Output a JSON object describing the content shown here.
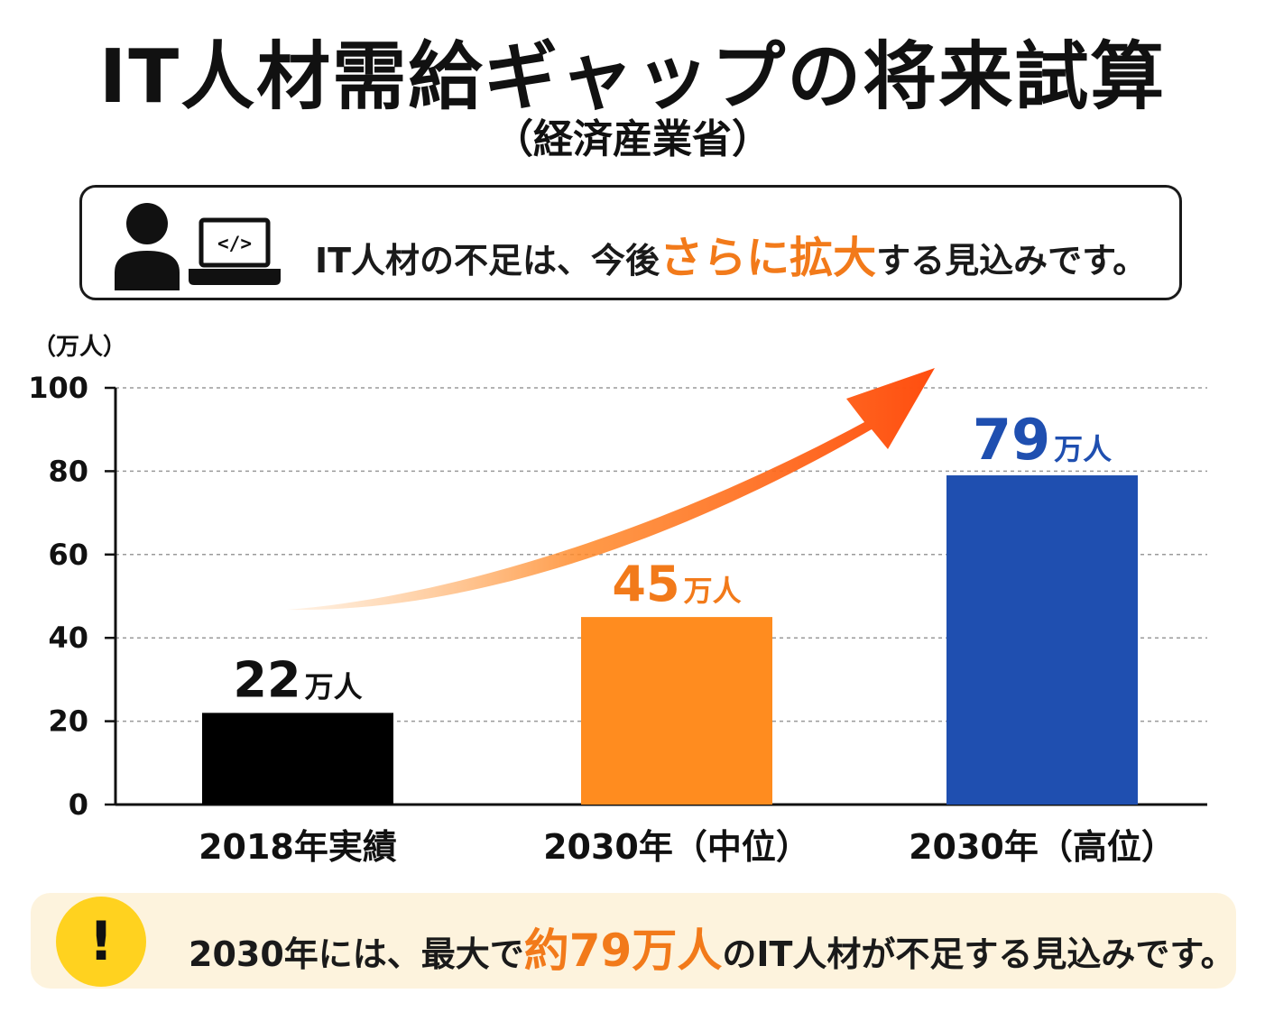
{
  "title": "IT人材需給ギャップの将来試算",
  "subtitle": "（経済産業省）",
  "message": {
    "prefix": "IT人材の不足は、今後",
    "highlight": "さらに拡大",
    "suffix": "する見込みです。",
    "icon": "person-laptop-code-icon",
    "code_glyph": "</>"
  },
  "chart_data": {
    "type": "bar",
    "unit_label": "（万人）",
    "categories": [
      "2018年実績",
      "2030年（中位）",
      "2030年（高位）"
    ],
    "values": [
      22,
      45,
      79
    ],
    "value_labels": [
      "22",
      "45",
      "79"
    ],
    "value_unit": "万人",
    "bar_colors": [
      "#000000",
      "#ff8c1f",
      "#1f4fb0"
    ],
    "label_colors": [
      "#111111",
      "#f27a1a",
      "#1f4fb0"
    ],
    "ylim": [
      0,
      100
    ],
    "yticks": [
      "0",
      "20",
      "40",
      "60",
      "80",
      "100"
    ],
    "grid": true,
    "trend_arrow_color": "#ff5a12"
  },
  "bottom": {
    "icon": "warning-exclamation-icon",
    "icon_glyph": "!",
    "prefix": "2030年には、最大で",
    "highlight": "約79万人",
    "suffix": "のIT人材が不足する見込みです。"
  }
}
